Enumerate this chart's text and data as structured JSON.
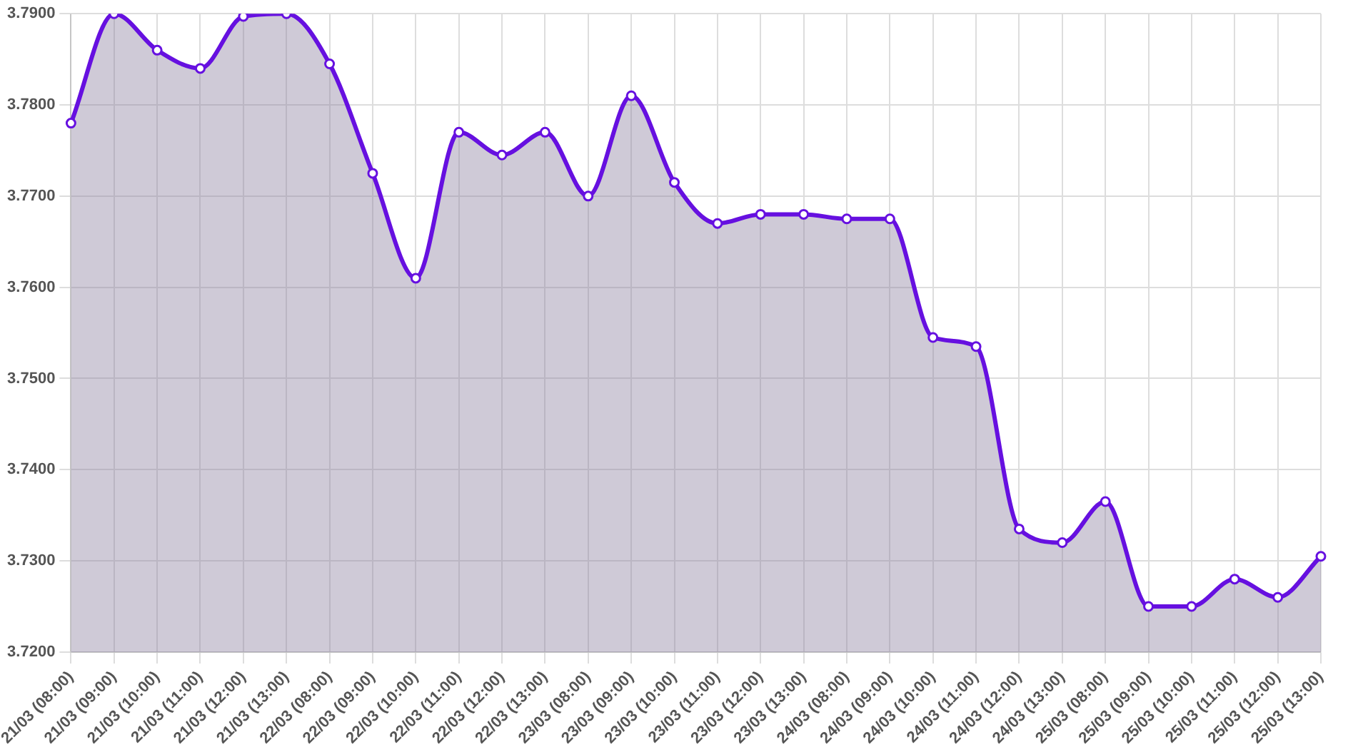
{
  "chart_data": {
    "type": "area",
    "categories": [
      "21/03 (08:00)",
      "21/03 (09:00)",
      "21/03 (10:00)",
      "21/03 (11:00)",
      "21/03 (12:00)",
      "21/03 (13:00)",
      "22/03 (08:00)",
      "22/03 (09:00)",
      "22/03 (10:00)",
      "22/03 (11:00)",
      "22/03 (12:00)",
      "22/03 (13:00)",
      "23/03 (08:00)",
      "23/03 (09:00)",
      "23/03 (10:00)",
      "23/03 (11:00)",
      "23/03 (12:00)",
      "23/03 (13:00)",
      "24/03 (08:00)",
      "24/03 (09:00)",
      "24/03 (10:00)",
      "24/03 (11:00)",
      "24/03 (12:00)",
      "24/03 (13:00)",
      "25/03 (08:00)",
      "25/03 (09:00)",
      "25/03 (10:00)",
      "25/03 (11:00)",
      "25/03 (12:00)",
      "25/03 (13:00)"
    ],
    "series": [
      {
        "color": "#6610e0",
        "values": [
          3.778,
          3.79,
          3.786,
          3.784,
          3.7897,
          3.79,
          3.7845,
          3.7725,
          3.761,
          3.777,
          3.7745,
          3.777,
          3.77,
          3.781,
          3.7715,
          3.767,
          3.768,
          3.768,
          3.7675,
          3.7675,
          3.7545,
          3.7535,
          3.7335,
          3.732,
          3.7365,
          3.725,
          3.725,
          3.728,
          3.726,
          3.7305
        ]
      }
    ],
    "ylim": [
      3.72,
      3.79
    ],
    "yticks": [
      {
        "value": 3.72,
        "label": "3.7200"
      },
      {
        "value": 3.73,
        "label": "3.7300"
      },
      {
        "value": 3.74,
        "label": "3.7400"
      },
      {
        "value": 3.75,
        "label": "3.7500"
      },
      {
        "value": 3.76,
        "label": "3.7600"
      },
      {
        "value": 3.77,
        "label": "3.7700"
      },
      {
        "value": 3.78,
        "label": "3.7800"
      },
      {
        "value": 3.79,
        "label": "3.7900"
      }
    ],
    "grid": true,
    "legend": false,
    "marker": "circle",
    "line_style": "solid"
  }
}
